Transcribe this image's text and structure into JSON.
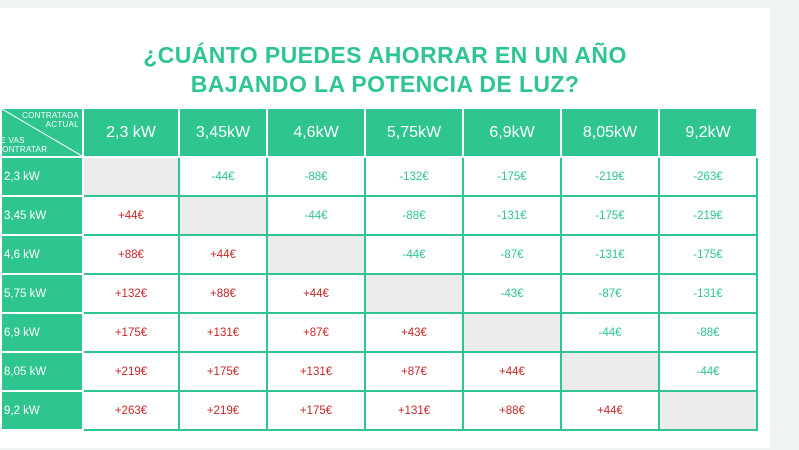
{
  "title_line1": "¿CUÁNTO PUEDES AHORRAR EN UN AÑO",
  "title_line2": "BAJANDO LA POTENCIA DE LUZ?",
  "corner_top": [
    "CONTRATADA",
    "ACTUAL"
  ],
  "corner_bottom": [
    "JE VAS",
    "CONTRATAR"
  ],
  "columns": [
    "2,3 kW",
    "3,45kW",
    "4,6kW",
    "5,75kW",
    "6,9kW",
    "8,05kW",
    "9,2kW"
  ],
  "rows": [
    {
      "label": "2,3 kW",
      "cells": [
        "",
        "-44€",
        "-88€",
        "-132€",
        "-175€",
        "-219€",
        "-263€"
      ]
    },
    {
      "label": "3,45 kW",
      "cells": [
        "+44€",
        "",
        "-44€",
        "-88€",
        "-131€",
        "-175€",
        "-219€"
      ]
    },
    {
      "label": "4,6 kW",
      "cells": [
        "+88€",
        "+44€",
        "",
        "-44€",
        "-87€",
        "-131€",
        "-175€"
      ]
    },
    {
      "label": "5,75 kW",
      "cells": [
        "+132€",
        "+88€",
        "+44€",
        "",
        "-43€",
        "-87€",
        "-131€"
      ]
    },
    {
      "label": "6,9 kW",
      "cells": [
        "+175€",
        "+131€",
        "+87€",
        "+43€",
        "",
        "-44€",
        "-88€"
      ]
    },
    {
      "label": "8,05 kW",
      "cells": [
        "+219€",
        "+175€",
        "+131€",
        "+87€",
        "+44€",
        "",
        "-44€"
      ]
    },
    {
      "label": "9,2 kW",
      "cells": [
        "+263€",
        "+219€",
        "+175€",
        "+131€",
        "+88€",
        "+44€",
        ""
      ]
    }
  ],
  "colors": {
    "accent": "#2ec58e",
    "increase": "#c62828",
    "blank": "#ebebeb"
  }
}
